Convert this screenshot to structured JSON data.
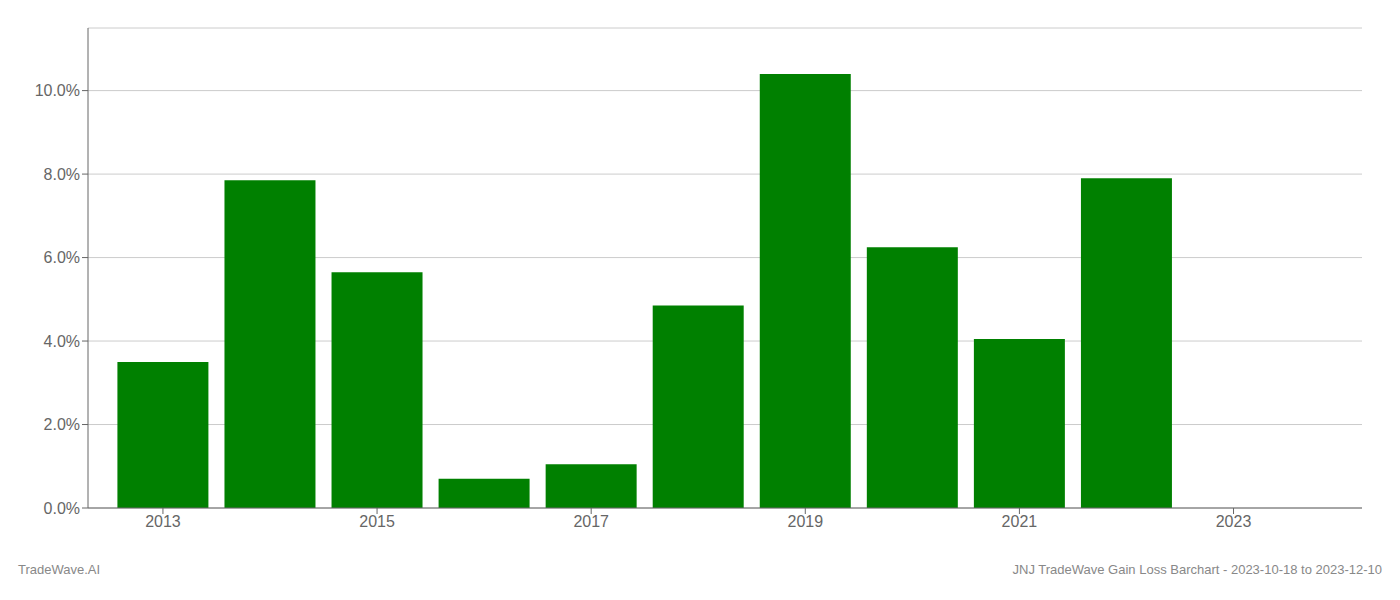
{
  "chart_data": {
    "type": "bar",
    "x": [
      2013,
      2014,
      2015,
      2016,
      2017,
      2018,
      2019,
      2020,
      2021,
      2022
    ],
    "values": [
      3.5,
      7.85,
      5.65,
      0.7,
      1.05,
      4.85,
      10.4,
      6.25,
      4.05,
      7.9
    ],
    "color": "#008000",
    "xlim": [
      2012.3,
      2024.2
    ],
    "xticks": [
      2013,
      2015,
      2017,
      2019,
      2021,
      2023
    ],
    "ylim": [
      0,
      11.5
    ],
    "yticks": [
      {
        "value": 0,
        "label": "0.0%"
      },
      {
        "value": 2,
        "label": "2.0%"
      },
      {
        "value": 4,
        "label": "4.0%"
      },
      {
        "value": 6,
        "label": "6.0%"
      },
      {
        "value": 8,
        "label": "8.0%"
      },
      {
        "value": 10,
        "label": "10.0%"
      }
    ],
    "grid": true,
    "annotations": [
      "TradeWave.AI",
      "JNJ TradeWave Gain Loss Barchart - 2023-10-18 to 2023-12-10"
    ]
  }
}
